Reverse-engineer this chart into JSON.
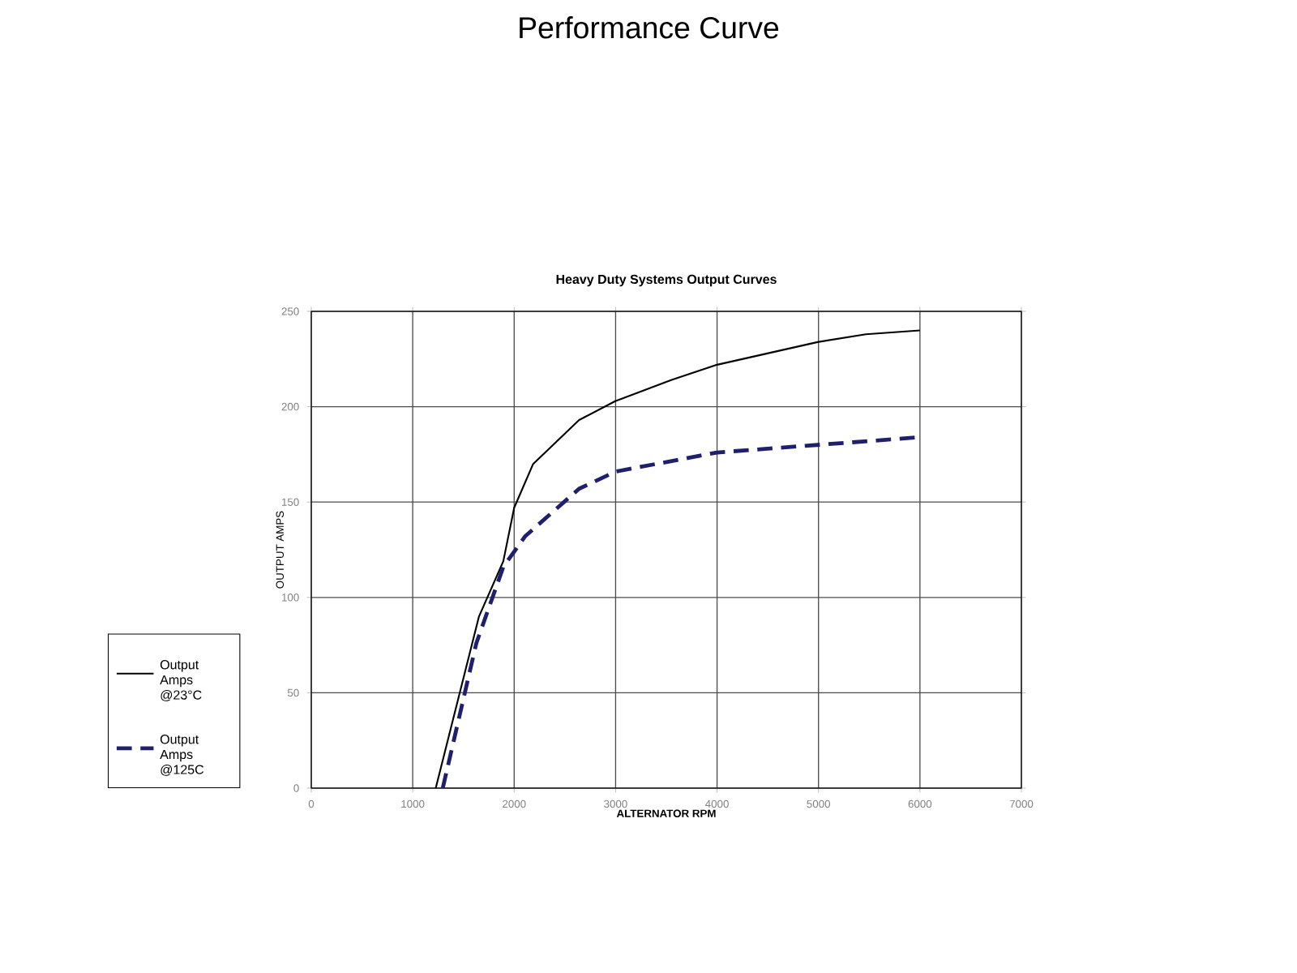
{
  "chart_data": {
    "type": "line",
    "title": "Performance Curve",
    "subtitle": "Heavy Duty Systems Output Curves",
    "xlabel": "ALTERNATOR RPM",
    "ylabel": "OUTPUT AMPS",
    "series": [
      {
        "name": "Output Amps @23°C",
        "color": "#000000",
        "line_style": "solid",
        "x": [
          1227,
          1653,
          1893,
          2000,
          2187,
          2640,
          3000,
          3547,
          4000,
          5000,
          5467,
          6000
        ],
        "values": [
          0,
          90,
          119,
          147,
          170,
          193,
          203,
          214,
          222,
          234,
          238,
          240
        ]
      },
      {
        "name": "Output Amps @125C",
        "color": "#1f1f6e",
        "line_style": "dashed",
        "x": [
          1296,
          1627,
          1893,
          2107,
          2640,
          3000,
          4000,
          5000,
          6000
        ],
        "values": [
          0,
          76,
          116,
          132,
          157,
          166,
          176,
          180,
          184
        ]
      }
    ],
    "xlim": [
      0,
      7000
    ],
    "xticks": [
      0,
      1000,
      2000,
      3000,
      4000,
      5000,
      6000,
      7000
    ],
    "ylim": [
      0,
      250
    ],
    "yticks": [
      0,
      50,
      100,
      150,
      200,
      250
    ],
    "grid": true,
    "legend": "left",
    "marker": "none"
  }
}
